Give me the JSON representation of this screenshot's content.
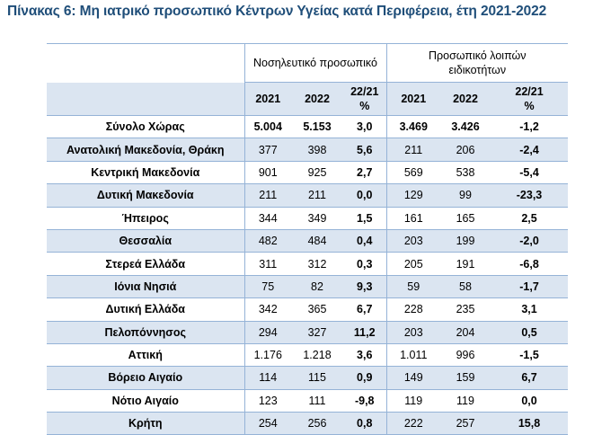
{
  "title": "Πίνακας 6: Μη ιατρικό προσωπικό Κέντρων Υγείας κατά Περιφέρεια, έτη 2021-2022",
  "groups": {
    "nursing": "Νοσηλευτικό προσωπικό",
    "other_line1": "Προσωπικό λοιπών",
    "other_line2": "ειδικοτήτων"
  },
  "columns": {
    "y2021": "2021",
    "y2022": "2022",
    "change_line1": "22/21",
    "change_line2": "%"
  },
  "rows": [
    {
      "region": "Σύνολο Χώρας",
      "n2021": "5.004",
      "n2022": "5.153",
      "npct": "3,0",
      "o2021": "3.469",
      "o2022": "3.426",
      "opct": "-1,2"
    },
    {
      "region": "Ανατολική Μακεδονία, Θράκη",
      "n2021": "377",
      "n2022": "398",
      "npct": "5,6",
      "o2021": "211",
      "o2022": "206",
      "opct": "-2,4"
    },
    {
      "region": "Κεντρική Μακεδονία",
      "n2021": "901",
      "n2022": "925",
      "npct": "2,7",
      "o2021": "569",
      "o2022": "538",
      "opct": "-5,4"
    },
    {
      "region": "Δυτική Μακεδονία",
      "n2021": "211",
      "n2022": "211",
      "npct": "0,0",
      "o2021": "129",
      "o2022": "99",
      "opct": "-23,3"
    },
    {
      "region": "Ήπειρος",
      "n2021": "344",
      "n2022": "349",
      "npct": "1,5",
      "o2021": "161",
      "o2022": "165",
      "opct": "2,5"
    },
    {
      "region": "Θεσσαλία",
      "n2021": "482",
      "n2022": "484",
      "npct": "0,4",
      "o2021": "203",
      "o2022": "199",
      "opct": "-2,0"
    },
    {
      "region": "Στερεά Ελλάδα",
      "n2021": "311",
      "n2022": "312",
      "npct": "0,3",
      "o2021": "205",
      "o2022": "191",
      "opct": "-6,8"
    },
    {
      "region": "Ιόνια Νησιά",
      "n2021": "75",
      "n2022": "82",
      "npct": "9,3",
      "o2021": "59",
      "o2022": "58",
      "opct": "-1,7"
    },
    {
      "region": "Δυτική Ελλάδα",
      "n2021": "342",
      "n2022": "365",
      "npct": "6,7",
      "o2021": "228",
      "o2022": "235",
      "opct": "3,1"
    },
    {
      "region": "Πελοπόννησος",
      "n2021": "294",
      "n2022": "327",
      "npct": "11,2",
      "o2021": "203",
      "o2022": "204",
      "opct": "0,5"
    },
    {
      "region": "Αττική",
      "n2021": "1.176",
      "n2022": "1.218",
      "npct": "3,6",
      "o2021": "1.011",
      "o2022": "996",
      "opct": "-1,5"
    },
    {
      "region": "Βόρειο Αιγαίο",
      "n2021": "114",
      "n2022": "115",
      "npct": "0,9",
      "o2021": "149",
      "o2022": "159",
      "opct": "6,7"
    },
    {
      "region": "Νότιο Αιγαίο",
      "n2021": "123",
      "n2022": "111",
      "npct": "-9,8",
      "o2021": "119",
      "o2022": "119",
      "opct": "0,0"
    },
    {
      "region": "Κρήτη",
      "n2021": "254",
      "n2022": "256",
      "npct": "0,8",
      "o2021": "222",
      "o2022": "257",
      "opct": "15,8"
    }
  ]
}
